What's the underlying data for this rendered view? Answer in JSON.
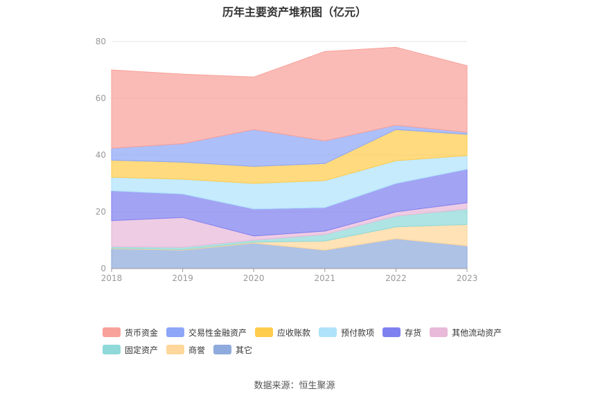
{
  "chart_data": {
    "type": "area",
    "stacked": true,
    "title": "历年主要资产堆积图（亿元）",
    "categories": [
      "2018",
      "2019",
      "2020",
      "2021",
      "2022",
      "2023"
    ],
    "ylim": [
      0,
      80
    ],
    "yticks": [
      0,
      20,
      40,
      60,
      80
    ],
    "grid": true,
    "legend_position": "bottom",
    "series": [
      {
        "name": "其它",
        "color": "#8faadc",
        "values": [
          7.0,
          6.5,
          9.0,
          6.5,
          10.5,
          8.0
        ]
      },
      {
        "name": "商誉",
        "color": "#ffd79a",
        "values": [
          0.2,
          0.2,
          0.3,
          3.2,
          4.2,
          7.5
        ]
      },
      {
        "name": "固定资产",
        "color": "#8fd9d8",
        "values": [
          0.5,
          0.8,
          0.7,
          2.3,
          3.8,
          5.5
        ]
      },
      {
        "name": "其他流动资产",
        "color": "#e8b9d9",
        "values": [
          9.2,
          10.5,
          1.5,
          1.2,
          1.5,
          2.2
        ]
      },
      {
        "name": "存货",
        "color": "#7f80f0",
        "values": [
          10.5,
          8.3,
          9.5,
          8.3,
          10.0,
          11.8
        ]
      },
      {
        "name": "预付款项",
        "color": "#aee3fb",
        "values": [
          4.8,
          5.2,
          9.0,
          9.5,
          8.0,
          4.8
        ]
      },
      {
        "name": "应收账款",
        "color": "#ffcc4d",
        "values": [
          6.0,
          6.0,
          6.0,
          6.0,
          11.0,
          7.5
        ]
      },
      {
        "name": "交易性金融资产",
        "color": "#8da6f7",
        "values": [
          4.2,
          6.5,
          13.0,
          8.0,
          1.5,
          0.7
        ]
      },
      {
        "name": "货币资金",
        "color": "#f8a19a",
        "values": [
          27.6,
          24.5,
          18.5,
          31.5,
          27.5,
          23.5
        ]
      }
    ],
    "legend_order": [
      "货币资金",
      "交易性金融资产",
      "应收账款",
      "预付款项",
      "存货",
      "其他流动资产",
      "固定资产",
      "商誉",
      "其它"
    ]
  },
  "source_text": "数据来源：恒生聚源"
}
